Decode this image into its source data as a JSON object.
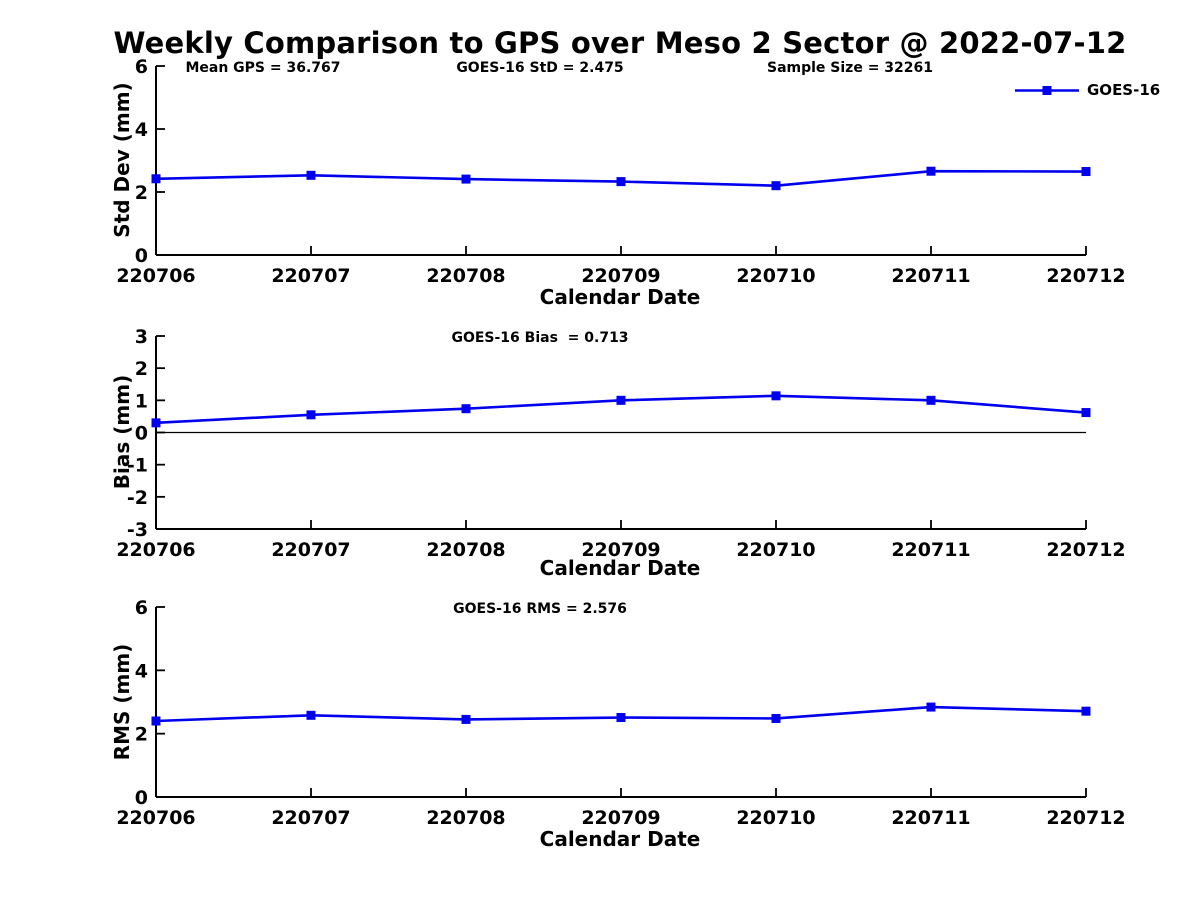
{
  "figure": {
    "title": "Weekly Comparison to GPS over Meso 2 Sector @ 2022-07-12",
    "background_color": "#ffffff",
    "text_color": "#000000"
  },
  "legend": {
    "label": "GOES-16",
    "color": "#0000ee",
    "position": "top-right"
  },
  "chart_data": [
    {
      "id": "std-dev",
      "type": "line",
      "annotations": [
        "Mean GPS = 36.767",
        "GOES-16 StD = 2.475",
        "Sample Size = 32261"
      ],
      "xlabel": "Calendar Date",
      "ylabel": "Std Dev (mm)",
      "categories": [
        "220706",
        "220707",
        "220708",
        "220709",
        "220710",
        "220711",
        "220712"
      ],
      "series": [
        {
          "name": "GOES-16",
          "color": "#0000ee",
          "marker": "square",
          "values": [
            2.42,
            2.53,
            2.41,
            2.33,
            2.2,
            2.66,
            2.65
          ]
        }
      ],
      "ylim": [
        0,
        6
      ],
      "yticks": [
        0,
        2,
        4,
        6
      ],
      "grid": false,
      "zero_line": false
    },
    {
      "id": "bias",
      "type": "line",
      "annotations": [
        "GOES-16 Bias  = 0.713"
      ],
      "xlabel": "Calendar Date",
      "ylabel": "Bias (mm)",
      "categories": [
        "220706",
        "220707",
        "220708",
        "220709",
        "220710",
        "220711",
        "220712"
      ],
      "series": [
        {
          "name": "GOES-16",
          "color": "#0000ee",
          "marker": "square",
          "values": [
            0.3,
            0.55,
            0.74,
            1.0,
            1.14,
            1.0,
            0.62
          ]
        }
      ],
      "ylim": [
        -3,
        3
      ],
      "yticks": [
        3,
        2,
        1,
        0,
        -1,
        -2,
        -3
      ],
      "grid": false,
      "zero_line": true
    },
    {
      "id": "rms",
      "type": "line",
      "annotations": [
        "GOES-16 RMS = 2.576"
      ],
      "xlabel": "Calendar Date",
      "ylabel": "RMS (mm)",
      "categories": [
        "220706",
        "220707",
        "220708",
        "220709",
        "220710",
        "220711",
        "220712"
      ],
      "series": [
        {
          "name": "GOES-16",
          "color": "#0000ee",
          "marker": "square",
          "values": [
            2.4,
            2.58,
            2.45,
            2.51,
            2.48,
            2.84,
            2.71
          ]
        }
      ],
      "ylim": [
        0,
        6
      ],
      "yticks": [
        0,
        2,
        4,
        6
      ],
      "grid": false,
      "zero_line": false
    }
  ]
}
